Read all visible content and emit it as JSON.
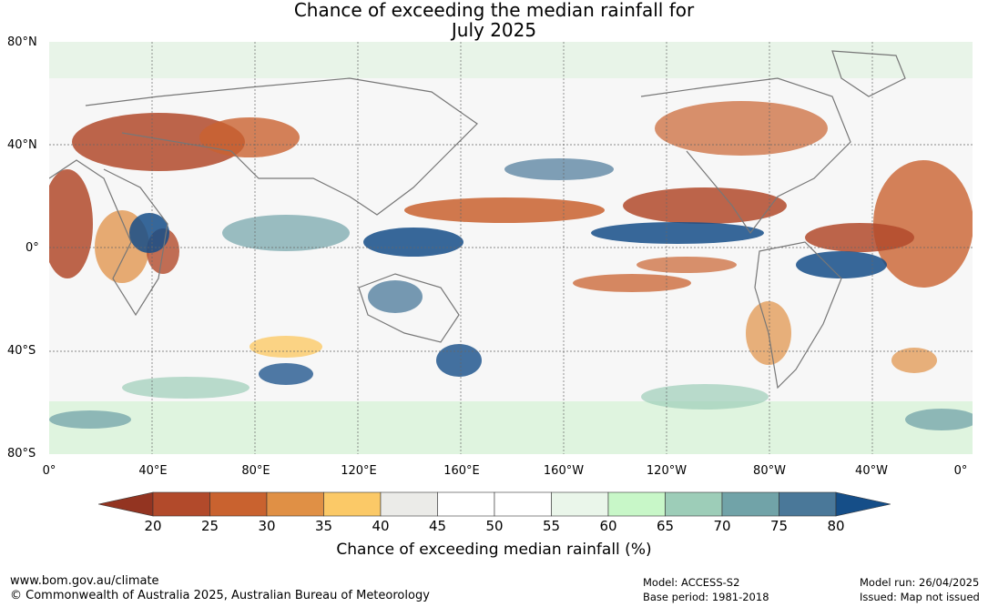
{
  "title_line1": "Chance of exceeding the median rainfall for",
  "title_line2": "July 2025",
  "lat_labels": [
    "80°N",
    "40°N",
    "0°",
    "40°S",
    "80°S"
  ],
  "lon_labels": [
    "0°",
    "40°E",
    "80°E",
    "120°E",
    "160°E",
    "160°W",
    "120°W",
    "80°W",
    "40°W",
    "0°"
  ],
  "colorbar": {
    "ticks": [
      "20",
      "25",
      "30",
      "35",
      "40",
      "45",
      "50",
      "55",
      "60",
      "65",
      "70",
      "75",
      "80"
    ],
    "colors": [
      "#b24a2b",
      "#c9622f",
      "#e09045",
      "#fbc967",
      "#ebebe8",
      "#ffffff",
      "#ffffff",
      "#eaf6ea",
      "#c8f7c8",
      "#9dcdb8",
      "#71a3a8",
      "#4a7899"
    ],
    "low_color": "#933421",
    "high_color": "#154e88",
    "label": "Chance of exceeding median rainfall (%)"
  },
  "footer": {
    "website": "www.bom.gov.au/climate",
    "copyright": "© Commonwealth of Australia 2025, Australian Bureau of Meteorology",
    "model": "Model: ACCESS-S2",
    "base_period": "Base period: 1981-2018",
    "model_run": "Model run: 26/04/2025",
    "issued": "Issued: Map not issued"
  }
}
